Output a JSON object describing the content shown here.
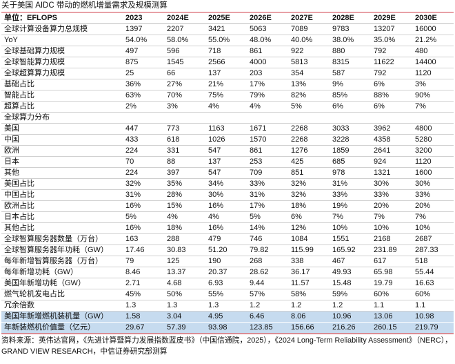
{
  "title": "关于美国 AIDC 带动的燃机增量需求及规模测算",
  "table": {
    "headers": [
      "单位：EFLOPS",
      "2023",
      "2024E",
      "2025E",
      "2026E",
      "2027E",
      "2028E",
      "2029E",
      "2030E"
    ],
    "rows": [
      [
        "全球计算设备算力总规模",
        "1397",
        "2207",
        "3421",
        "5063",
        "7089",
        "9783",
        "13207",
        "16000"
      ],
      [
        "YoY",
        "54.0%",
        "58.0%",
        "55.0%",
        "48.0%",
        "40.0%",
        "38.0%",
        "35.0%",
        "21.2%"
      ],
      [
        "全球基础算力规模",
        "497",
        "596",
        "718",
        "861",
        "922",
        "880",
        "792",
        "480"
      ],
      [
        "全球智能算力规模",
        "875",
        "1545",
        "2566",
        "4000",
        "5813",
        "8315",
        "11622",
        "14400"
      ],
      [
        "全球超算算力规模",
        "25",
        "66",
        "137",
        "203",
        "354",
        "587",
        "792",
        "1120"
      ],
      [
        "基础占比",
        "36%",
        "27%",
        "21%",
        "17%",
        "13%",
        "9%",
        "6%",
        "3%"
      ],
      [
        "智能占比",
        "63%",
        "70%",
        "75%",
        "79%",
        "82%",
        "85%",
        "88%",
        "90%"
      ],
      [
        "超算占比",
        "2%",
        "3%",
        "4%",
        "4%",
        "5%",
        "6%",
        "6%",
        "7%"
      ],
      [
        "全球算力分布",
        "",
        "",
        "",
        "",
        "",
        "",
        "",
        ""
      ],
      [
        "美国",
        "447",
        "773",
        "1163",
        "1671",
        "2268",
        "3033",
        "3962",
        "4800"
      ],
      [
        "中国",
        "433",
        "618",
        "1026",
        "1570",
        "2268",
        "3228",
        "4358",
        "5280"
      ],
      [
        "欧洲",
        "224",
        "331",
        "547",
        "861",
        "1276",
        "1859",
        "2641",
        "3200"
      ],
      [
        "日本",
        "70",
        "88",
        "137",
        "253",
        "425",
        "685",
        "924",
        "1120"
      ],
      [
        "其他",
        "224",
        "397",
        "547",
        "709",
        "851",
        "978",
        "1321",
        "1600"
      ],
      [
        "美国占比",
        "32%",
        "35%",
        "34%",
        "33%",
        "32%",
        "31%",
        "30%",
        "30%"
      ],
      [
        "中国占比",
        "31%",
        "28%",
        "30%",
        "31%",
        "32%",
        "33%",
        "33%",
        "33%"
      ],
      [
        "欧洲占比",
        "16%",
        "15%",
        "16%",
        "17%",
        "18%",
        "19%",
        "20%",
        "20%"
      ],
      [
        "日本占比",
        "5%",
        "4%",
        "4%",
        "5%",
        "6%",
        "7%",
        "7%",
        "7%"
      ],
      [
        "其他占比",
        "16%",
        "18%",
        "16%",
        "14%",
        "12%",
        "10%",
        "10%",
        "10%"
      ],
      [
        "全球智算服务器数量（万台）",
        "163",
        "288",
        "479",
        "746",
        "1084",
        "1551",
        "2168",
        "2687"
      ],
      [
        "全球智算服务器年功耗（GW）",
        "17.46",
        "30.83",
        "51.20",
        "79.82",
        "115.99",
        "165.92",
        "231.89",
        "287.33"
      ],
      [
        "每年新增智算服务器（万台）",
        "79",
        "125",
        "190",
        "268",
        "338",
        "467",
        "617",
        "518"
      ],
      [
        "每年新增功耗（GW）",
        "8.46",
        "13.37",
        "20.37",
        "28.62",
        "36.17",
        "49.93",
        "65.98",
        "55.44"
      ],
      [
        "美国年新增功耗（GW）",
        "2.71",
        "4.68",
        "6.93",
        "9.44",
        "11.57",
        "15.48",
        "19.79",
        "16.63"
      ],
      [
        "燃气轮机发电占比",
        "45%",
        "50%",
        "55%",
        "57%",
        "58%",
        "59%",
        "60%",
        "60%"
      ],
      [
        "冗余倍数",
        "1.3",
        "1.3",
        "1.3",
        "1.2",
        "1.2",
        "1.2",
        "1.1",
        "1.1"
      ],
      [
        "美国年新增燃机装机量（GW）",
        "1.58",
        "3.04",
        "4.95",
        "6.46",
        "8.06",
        "10.96",
        "13.06",
        "10.98"
      ],
      [
        "年新装燃机价值量（亿元）",
        "29.67",
        "57.39",
        "93.98",
        "123.85",
        "156.66",
        "216.26",
        "260.15",
        "219.79"
      ]
    ],
    "highlight_color": "#c6dbef"
  },
  "source": "资料来源：英伟达官网，《先进计算暨算力发展指数蓝皮书》（中国信通院，2025），《2024 Long-Term Reliability Assessment》（NERC），GRAND VIEW RESEARCH，中信证券研究部测算"
}
